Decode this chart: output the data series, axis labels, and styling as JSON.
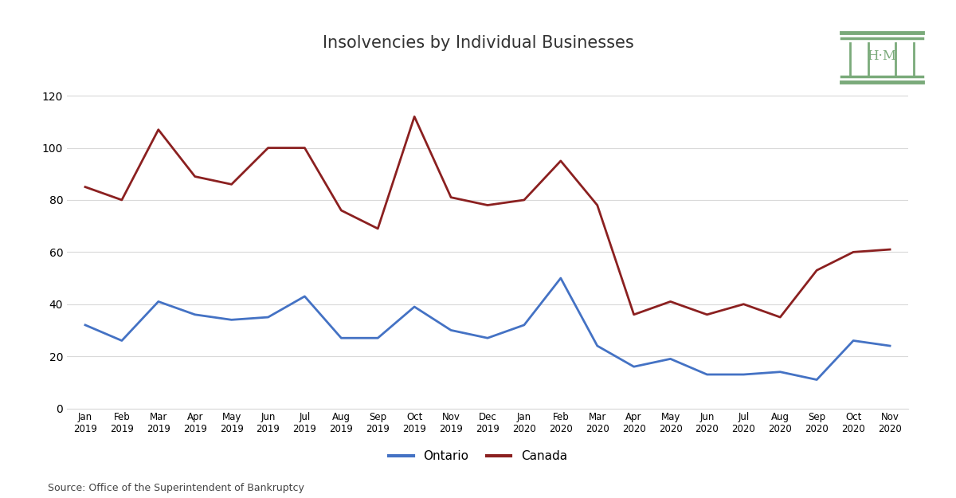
{
  "title": "Insolvencies by Individual Businesses",
  "source": "Source: Office of the Superintendent of Bankruptcy",
  "labels": [
    "Jan\n2019",
    "Feb\n2019",
    "Mar\n2019",
    "Apr\n2019",
    "May\n2019",
    "Jun\n2019",
    "Jul\n2019",
    "Aug\n2019",
    "Sep\n2019",
    "Oct\n2019",
    "Nov\n2019",
    "Dec\n2019",
    "Jan\n2020",
    "Feb\n2020",
    "Mar\n2020",
    "Apr\n2020",
    "May\n2020",
    "Jun\n2020",
    "Jul\n2020",
    "Aug\n2020",
    "Sep\n2020",
    "Oct\n2020",
    "Nov\n2020"
  ],
  "ontario": [
    32,
    26,
    41,
    36,
    34,
    35,
    43,
    27,
    27,
    39,
    30,
    27,
    32,
    50,
    24,
    16,
    19,
    13,
    13,
    14,
    11,
    26,
    24
  ],
  "canada": [
    85,
    80,
    107,
    89,
    86,
    100,
    100,
    76,
    69,
    112,
    81,
    78,
    80,
    95,
    78,
    36,
    41,
    36,
    40,
    35,
    53,
    60,
    61
  ],
  "ontario_color": "#4472c4",
  "canada_color": "#8b2020",
  "background_color": "#ffffff",
  "ylim": [
    0,
    130
  ],
  "yticks": [
    0,
    20,
    40,
    60,
    80,
    100,
    120
  ],
  "title_fontsize": 15,
  "legend_labels": [
    "Ontario",
    "Canada"
  ],
  "logo_color": "#7aaa7a",
  "grid_color": "#d9d9d9",
  "spine_color": "#d9d9d9"
}
